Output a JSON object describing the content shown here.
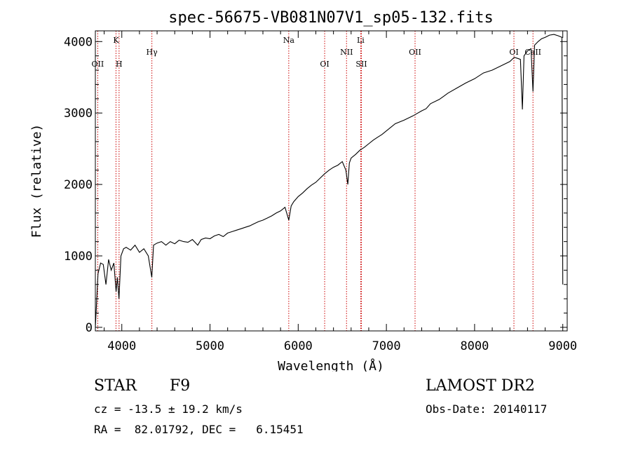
{
  "chart_data": {
    "type": "line",
    "title": "spec-56675-VB081N07V1_sp05-132.fits",
    "xlabel": "Wavelength (Å)",
    "ylabel": "Flux (relative)",
    "xlim": [
      3700,
      9050
    ],
    "ylim": [
      -50,
      4150
    ],
    "xticks": [
      4000,
      5000,
      6000,
      7000,
      8000,
      9000
    ],
    "yticks": [
      0,
      1000,
      2000,
      3000,
      4000
    ],
    "line_color": "#000000",
    "marker_color": "#cc0000",
    "grid": false,
    "spectrum": {
      "x": [
        3700,
        3730,
        3760,
        3790,
        3820,
        3850,
        3880,
        3910,
        3935,
        3950,
        3968,
        3990,
        4020,
        4050,
        4100,
        4150,
        4200,
        4250,
        4300,
        4340,
        4360,
        4400,
        4450,
        4500,
        4550,
        4600,
        4650,
        4700,
        4750,
        4800,
        4861,
        4900,
        4950,
        5000,
        5050,
        5100,
        5150,
        5200,
        5250,
        5300,
        5350,
        5400,
        5450,
        5500,
        5550,
        5600,
        5650,
        5700,
        5750,
        5800,
        5850,
        5893,
        5920,
        5950,
        6000,
        6050,
        6100,
        6150,
        6200,
        6250,
        6300,
        6350,
        6400,
        6450,
        6500,
        6540,
        6563,
        6580,
        6600,
        6650,
        6700,
        6750,
        6800,
        6850,
        6900,
        6950,
        7000,
        7100,
        7200,
        7300,
        7400,
        7450,
        7500,
        7600,
        7700,
        7800,
        7900,
        8000,
        8100,
        8200,
        8300,
        8400,
        8450,
        8498,
        8520,
        8542,
        8560,
        8600,
        8640,
        8662,
        8680,
        8720,
        8760,
        8800,
        8850,
        8900,
        8950,
        8990,
        9000
      ],
      "y": [
        0,
        750,
        900,
        880,
        600,
        950,
        800,
        900,
        500,
        700,
        400,
        1000,
        1100,
        1120,
        1080,
        1150,
        1050,
        1100,
        1000,
        700,
        1150,
        1180,
        1200,
        1150,
        1200,
        1170,
        1220,
        1200,
        1190,
        1230,
        1150,
        1230,
        1250,
        1240,
        1280,
        1300,
        1270,
        1320,
        1340,
        1360,
        1380,
        1400,
        1420,
        1450,
        1480,
        1500,
        1530,
        1560,
        1600,
        1630,
        1680,
        1500,
        1700,
        1760,
        1830,
        1880,
        1940,
        1990,
        2030,
        2090,
        2150,
        2200,
        2240,
        2270,
        2320,
        2200,
        2000,
        2300,
        2370,
        2420,
        2480,
        2520,
        2570,
        2620,
        2660,
        2700,
        2750,
        2850,
        2900,
        2960,
        3030,
        3060,
        3130,
        3190,
        3280,
        3350,
        3420,
        3480,
        3560,
        3600,
        3660,
        3720,
        3780,
        3760,
        3750,
        3050,
        3800,
        3870,
        3900,
        3300,
        3950,
        4000,
        4040,
        4060,
        4090,
        4100,
        4080,
        4060,
        600
      ]
    },
    "lines": [
      {
        "label": "OII",
        "wavelength": 3727,
        "row": 2
      },
      {
        "label": "K",
        "wavelength": 3934,
        "row": 1
      },
      {
        "label": "H",
        "wavelength": 3969,
        "row": 2
      },
      {
        "label": "Hγ",
        "wavelength": 4341,
        "row": 1.5
      },
      {
        "label": "Na",
        "wavelength": 5893,
        "row": 1
      },
      {
        "label": "OI",
        "wavelength": 6300,
        "row": 2
      },
      {
        "label": "NII",
        "wavelength": 6548,
        "row": 1.5
      },
      {
        "label": "Li",
        "wavelength": 6708,
        "row": 1
      },
      {
        "label": "SII",
        "wavelength": 6717,
        "row": 2
      },
      {
        "label": "OII",
        "wavelength": 7325,
        "row": 1.5
      },
      {
        "label": "OI",
        "wavelength": 8446,
        "row": 1.5
      },
      {
        "label": "CaII",
        "wavelength": 8662,
        "row": 1.5
      }
    ]
  },
  "info": {
    "class": "STAR",
    "subclass": "F9",
    "survey": "LAMOST DR2",
    "cz": "cz = -13.5 ± 19.2 km/s",
    "obsdate": "Obs-Date: 20140117",
    "radec": "RA =  82.01792, DEC =   6.15451"
  }
}
